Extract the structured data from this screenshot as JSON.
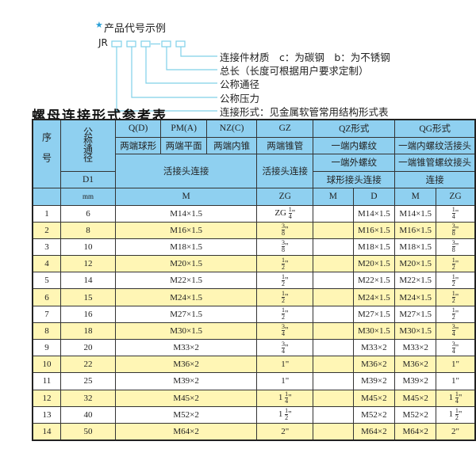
{
  "example": {
    "star_icon": "star",
    "title": "产品代号示例",
    "prefix": "JR",
    "labels": [
      "连接件材质　c：为碳钢　b：为不锈钢",
      "总长（长度可根据用户要求定制）",
      "公称通径",
      "公称压力",
      "连接形式：见金属软管常用结构形式表"
    ],
    "line_color": "#7fd0e8"
  },
  "section_title": "螺母连接形式参考表",
  "colors": {
    "header": "#8fd0f0",
    "alt_row": "#fff6b5"
  },
  "table": {
    "h_seq": "序号",
    "h_dn": "公称通径",
    "h_d1": "D1",
    "h_mm": "mm",
    "codes": [
      "Q(D)",
      "PM(A)",
      "NZ(C)",
      "GZ",
      "QZ形式",
      "QG形式"
    ],
    "types": [
      "两端球形",
      "两端平面",
      "两端内锥",
      "两端锥管",
      "一端内螺纹",
      "一端内螺纹活接头"
    ],
    "conn1": [
      "活接头连接",
      "活接头连接",
      "一端外螺纹",
      "一端锥管螺纹接头"
    ],
    "conn2": [
      "球形接头连接",
      "连接"
    ],
    "units": [
      "M",
      "ZG",
      "M",
      "D",
      "M",
      "ZG"
    ],
    "rows": [
      [
        "1",
        "6",
        "M14×1.5",
        "ZG|1/4|\"",
        "",
        "M14×1.5",
        "M14×1.5",
        "|1/4|\""
      ],
      [
        "2",
        "8",
        "M16×1.5",
        "|3/8|\"",
        "",
        "M16×1.5",
        "M16×1.5",
        "|3/8|\""
      ],
      [
        "3",
        "10",
        "M18×1.5",
        "|3/8|\"",
        "",
        "M18×1.5",
        "M18×1.5",
        "|3/8|\""
      ],
      [
        "4",
        "12",
        "M20×1.5",
        "|1/2|\"",
        "",
        "M20×1.5",
        "M20×1.5",
        "|1/2|\""
      ],
      [
        "5",
        "14",
        "M22×1.5",
        "|1/2|\"",
        "",
        "M22×1.5",
        "M22×1.5",
        "|1/2|\""
      ],
      [
        "6",
        "15",
        "M24×1.5",
        "|1/2|\"",
        "",
        "M24×1.5",
        "M24×1.5",
        "|1/2|\""
      ],
      [
        "7",
        "16",
        "M27×1.5",
        "|1/2|\"",
        "",
        "M27×1.5",
        "M27×1.5",
        "|1/2|\""
      ],
      [
        "8",
        "18",
        "M30×1.5",
        "|3/4|\"",
        "",
        "M30×1.5",
        "M30×1.5",
        "|3/4|\""
      ],
      [
        "9",
        "20",
        "M33×2",
        "|3/4|\"",
        "",
        "M33×2",
        "M33×2",
        "|3/4|\""
      ],
      [
        "10",
        "22",
        "M36×2",
        "1\"",
        "",
        "M36×2",
        "M36×2",
        "1\""
      ],
      [
        "11",
        "25",
        "M39×2",
        "1\"",
        "",
        "M39×2",
        "M39×2",
        "1\""
      ],
      [
        "12",
        "32",
        "M45×2",
        "1|1/4|\"",
        "",
        "M45×2",
        "M45×2",
        "1|1/4|\""
      ],
      [
        "13",
        "40",
        "M52×2",
        "1|1/2|\"",
        "",
        "M52×2",
        "M52×2",
        "1|1/2|\""
      ],
      [
        "14",
        "50",
        "M64×2",
        "2\"",
        "",
        "M64×2",
        "M64×2",
        "2\""
      ]
    ]
  }
}
